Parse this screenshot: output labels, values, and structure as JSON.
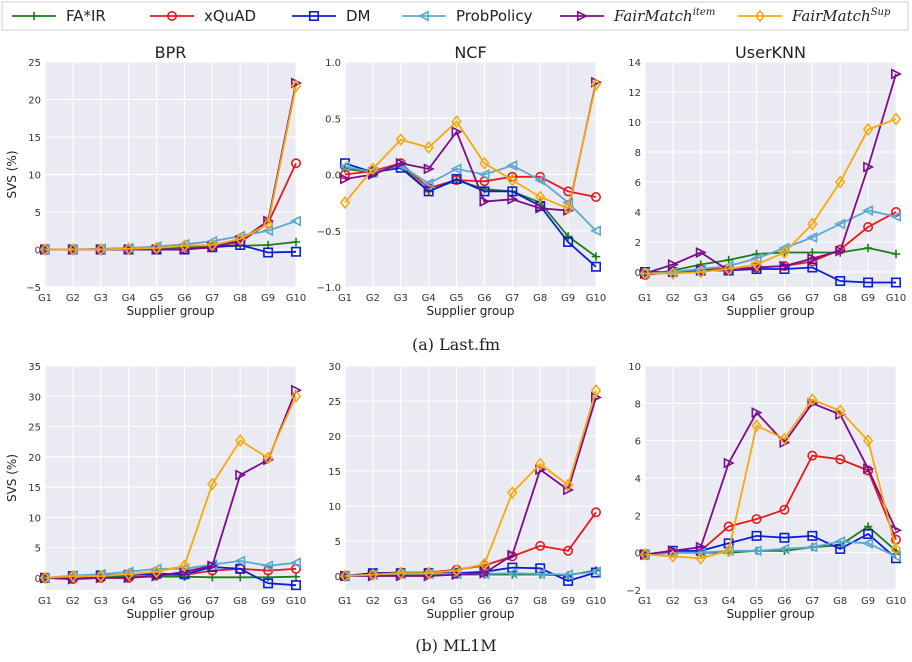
{
  "legend": {
    "placement": "top",
    "entries": [
      {
        "label": "FA*IR",
        "italic": false,
        "sup": "",
        "color": "#1a7f1a",
        "marker": "plus"
      },
      {
        "label": "xQuAD",
        "italic": false,
        "sup": "",
        "color": "#e41a1c",
        "marker": "circle"
      },
      {
        "label": "DM",
        "italic": false,
        "sup": "",
        "color": "#0a1ed6",
        "marker": "square"
      },
      {
        "label": "ProbPolicy",
        "italic": false,
        "sup": "",
        "color": "#5aa9d0",
        "marker": "triangle-left"
      },
      {
        "label": "FairMatch",
        "italic": true,
        "sup": "item",
        "color": "#7b0c8c",
        "marker": "triangle-right"
      },
      {
        "label": "FairMatch",
        "italic": true,
        "sup": "Sup",
        "color": "#f5a90f",
        "marker": "diamond"
      }
    ]
  },
  "captions": {
    "row_a": "(a) Last.fm",
    "row_b": "(b) ML1M"
  },
  "chart_data": [
    {
      "type": "line",
      "title": "BPR",
      "xlabel": "Supplier group",
      "ylabel": "SVS (%)",
      "categories": [
        "G1",
        "G2",
        "G3",
        "G4",
        "G5",
        "G6",
        "G7",
        "G8",
        "G9",
        "G10"
      ],
      "ylim": [
        -5,
        25
      ],
      "yticks": [
        "−5",
        "0",
        "5",
        "10",
        "15",
        "20",
        "25"
      ],
      "grid": true,
      "series": [
        {
          "name": "FA*IR",
          "values": [
            0,
            0,
            0,
            0.1,
            0.2,
            0.3,
            0.4,
            0.5,
            0.6,
            1.0
          ]
        },
        {
          "name": "xQuAD",
          "values": [
            0,
            0,
            0,
            0,
            0,
            0,
            0.4,
            1.0,
            3.5,
            11.5
          ]
        },
        {
          "name": "DM",
          "values": [
            0,
            0,
            0,
            0,
            0,
            0,
            0.3,
            0.6,
            -0.4,
            -0.3
          ]
        },
        {
          "name": "ProbPolicy",
          "values": [
            0,
            0,
            0.1,
            0.2,
            0.4,
            0.7,
            1.1,
            1.8,
            2.5,
            3.8
          ]
        },
        {
          "name": "FairMatch item",
          "values": [
            0,
            0,
            0,
            0,
            0,
            0,
            0.3,
            1.2,
            3.8,
            22.2
          ]
        },
        {
          "name": "FairMatch Sup",
          "values": [
            0,
            0,
            0,
            0.1,
            0.2,
            0.5,
            0.6,
            1.4,
            3.4,
            21.8
          ]
        }
      ]
    },
    {
      "type": "line",
      "title": "NCF",
      "xlabel": "Supplier group",
      "ylabel": "",
      "categories": [
        "G1",
        "G2",
        "G3",
        "G4",
        "G5",
        "G6",
        "G7",
        "G8",
        "G9",
        "G10"
      ],
      "ylim": [
        -1.0,
        1.0
      ],
      "yticks": [
        "−1.0",
        "−0.5",
        "0.0",
        "0.5",
        "1.0"
      ],
      "grid": true,
      "series": [
        {
          "name": "FA*IR",
          "values": [
            0.05,
            0.02,
            0.08,
            -0.15,
            -0.05,
            -0.13,
            -0.15,
            -0.25,
            -0.55,
            -0.73
          ]
        },
        {
          "name": "xQuAD",
          "values": [
            0.0,
            0.03,
            0.1,
            -0.12,
            -0.05,
            -0.06,
            -0.02,
            -0.02,
            -0.15,
            -0.2
          ]
        },
        {
          "name": "DM",
          "values": [
            0.1,
            0.02,
            0.06,
            -0.15,
            -0.04,
            -0.15,
            -0.15,
            -0.28,
            -0.6,
            -0.82
          ]
        },
        {
          "name": "ProbPolicy",
          "values": [
            0.07,
            0.02,
            0.08,
            -0.08,
            0.05,
            0.0,
            0.08,
            -0.05,
            -0.25,
            -0.5
          ]
        },
        {
          "name": "FairMatch item",
          "values": [
            -0.04,
            0.0,
            0.1,
            0.05,
            0.38,
            -0.24,
            -0.22,
            -0.3,
            -0.32,
            0.82
          ]
        },
        {
          "name": "FairMatch Sup",
          "values": [
            -0.25,
            0.05,
            0.31,
            0.24,
            0.47,
            0.1,
            -0.05,
            -0.2,
            -0.3,
            0.8
          ]
        }
      ]
    },
    {
      "type": "line",
      "title": "UserKNN",
      "xlabel": "Supplier group",
      "ylabel": "",
      "categories": [
        "G1",
        "G2",
        "G3",
        "G4",
        "G5",
        "G6",
        "G7",
        "G8",
        "G9",
        "G10"
      ],
      "ylim": [
        -1,
        14
      ],
      "yticks": [
        "0",
        "2",
        "4",
        "6",
        "8",
        "10",
        "12",
        "14"
      ],
      "grid": true,
      "series": [
        {
          "name": "FA*IR",
          "values": [
            -0.2,
            0.1,
            0.5,
            0.8,
            1.2,
            1.3,
            1.3,
            1.3,
            1.6,
            1.2
          ]
        },
        {
          "name": "xQuAD",
          "values": [
            -0.2,
            0.0,
            0.2,
            0.2,
            0.3,
            0.4,
            0.7,
            1.5,
            3.0,
            4.0
          ]
        },
        {
          "name": "DM",
          "values": [
            0.0,
            0.0,
            0.1,
            0.1,
            0.2,
            0.2,
            0.3,
            -0.6,
            -0.7,
            -0.7
          ]
        },
        {
          "name": "ProbPolicy",
          "values": [
            -0.1,
            0.0,
            0.2,
            0.4,
            0.9,
            1.6,
            2.3,
            3.2,
            4.1,
            3.7
          ]
        },
        {
          "name": "FairMatch item",
          "values": [
            -0.1,
            0.5,
            1.3,
            0.1,
            0.3,
            0.4,
            0.9,
            1.4,
            7.0,
            13.2
          ]
        },
        {
          "name": "FairMatch Sup",
          "values": [
            -0.1,
            -0.1,
            0.0,
            0.2,
            0.5,
            1.3,
            3.2,
            6.0,
            9.5,
            10.2
          ]
        }
      ]
    },
    {
      "type": "line",
      "title": "",
      "xlabel": "Supplier group",
      "ylabel": "SVS (%)",
      "categories": [
        "G1",
        "G2",
        "G3",
        "G4",
        "G5",
        "G6",
        "G7",
        "G8",
        "G9",
        "G10"
      ],
      "ylim": [
        -2,
        35
      ],
      "yticks": [
        "0",
        "5",
        "10",
        "15",
        "20",
        "25",
        "30",
        "35"
      ],
      "grid": true,
      "series": [
        {
          "name": "FA*IR",
          "values": [
            0,
            0.2,
            0.2,
            0.2,
            0.2,
            0.2,
            0.1,
            0.1,
            0.1,
            0.2
          ]
        },
        {
          "name": "xQuAD",
          "values": [
            0,
            -0.2,
            0,
            0,
            0.5,
            0.5,
            1.2,
            1.5,
            1.2,
            1.5
          ]
        },
        {
          "name": "DM",
          "values": [
            0,
            0.3,
            0.4,
            0.5,
            0.7,
            0.6,
            1.8,
            1.5,
            -0.9,
            -1.2
          ]
        },
        {
          "name": "ProbPolicy",
          "values": [
            0,
            0.4,
            0.6,
            1.0,
            1.5,
            1.5,
            2.2,
            2.8,
            2.0,
            2.5
          ]
        },
        {
          "name": "FairMatch item",
          "values": [
            0,
            -0.2,
            0,
            0,
            0.3,
            1.0,
            2.0,
            17.0,
            19.5,
            31.0
          ]
        },
        {
          "name": "FairMatch Sup",
          "values": [
            0,
            0.3,
            0.3,
            0.6,
            1.0,
            2.0,
            15.5,
            22.7,
            19.8,
            30.0
          ]
        }
      ]
    },
    {
      "type": "line",
      "title": "",
      "xlabel": "Supplier group",
      "ylabel": "",
      "categories": [
        "G1",
        "G2",
        "G3",
        "G4",
        "G5",
        "G6",
        "G7",
        "G8",
        "G9",
        "G10"
      ],
      "ylim": [
        -2,
        30
      ],
      "yticks": [
        "0",
        "5",
        "10",
        "15",
        "20",
        "25",
        "30"
      ],
      "grid": true,
      "series": [
        {
          "name": "FA*IR",
          "values": [
            0,
            0.2,
            0.2,
            0.2,
            0.2,
            0.2,
            0.2,
            0.2,
            0.1,
            0.8
          ]
        },
        {
          "name": "xQuAD",
          "values": [
            0,
            0.4,
            0.5,
            0.5,
            0.9,
            1.5,
            2.8,
            4.3,
            3.6,
            9.1
          ]
        },
        {
          "name": "DM",
          "values": [
            0,
            0.4,
            0.4,
            0.4,
            0.4,
            0.6,
            1.2,
            1.1,
            -0.7,
            0.5
          ]
        },
        {
          "name": "ProbPolicy",
          "values": [
            0,
            0.2,
            0.3,
            0.3,
            0.3,
            0.3,
            0.4,
            0.3,
            0.2,
            0.6
          ]
        },
        {
          "name": "FairMatch item",
          "values": [
            0,
            0,
            0,
            0,
            0.2,
            0.4,
            3.0,
            15.2,
            12.3,
            25.5
          ]
        },
        {
          "name": "FairMatch Sup",
          "values": [
            0,
            0.2,
            0.4,
            0.4,
            0.8,
            1.7,
            11.9,
            16.0,
            13.0,
            26.5
          ]
        }
      ]
    },
    {
      "type": "line",
      "title": "",
      "xlabel": "Supplier group",
      "ylabel": "",
      "categories": [
        "G1",
        "G2",
        "G3",
        "G4",
        "G5",
        "G6",
        "G7",
        "G8",
        "G9",
        "G10"
      ],
      "ylim": [
        -2,
        10
      ],
      "yticks": [
        "−2",
        "0",
        "2",
        "4",
        "6",
        "8",
        "10"
      ],
      "grid": true,
      "series": [
        {
          "name": "FA*IR",
          "values": [
            -0.1,
            0.0,
            0.0,
            0.0,
            0.1,
            0.1,
            0.3,
            0.4,
            1.4,
            0.1
          ]
        },
        {
          "name": "xQuAD",
          "values": [
            -0.1,
            0.0,
            0.1,
            1.4,
            1.8,
            2.3,
            5.2,
            5.0,
            4.4,
            0.7
          ]
        },
        {
          "name": "DM",
          "values": [
            -0.1,
            0.1,
            0.1,
            0.5,
            0.9,
            0.8,
            0.9,
            0.2,
            1.0,
            -0.3
          ]
        },
        {
          "name": "ProbPolicy",
          "values": [
            -0.1,
            0.0,
            0.0,
            0.1,
            0.1,
            0.2,
            0.3,
            0.6,
            0.5,
            -0.2
          ]
        },
        {
          "name": "FairMatch item",
          "values": [
            -0.1,
            0.1,
            0.3,
            4.8,
            7.5,
            5.9,
            8.0,
            7.4,
            4.5,
            1.2
          ]
        },
        {
          "name": "FairMatch Sup",
          "values": [
            -0.1,
            -0.2,
            -0.3,
            0.1,
            6.8,
            6.1,
            8.2,
            7.6,
            6.0,
            0.2
          ]
        }
      ]
    }
  ]
}
